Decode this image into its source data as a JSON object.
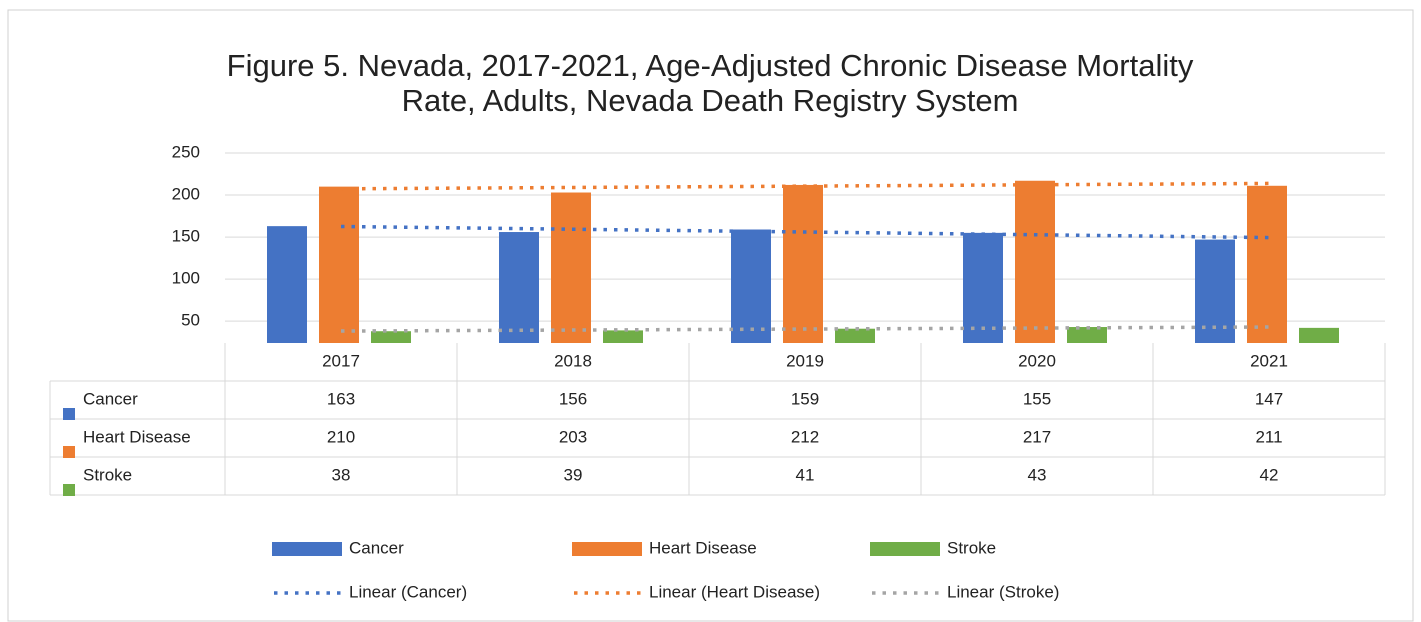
{
  "chart_data": {
    "type": "bar",
    "title": "Figure 5. Nevada, 2017-2021, Age-Adjusted Chronic Disease Mortality",
    "subtitle": "Rate, Adults, Nevada Death Registry System",
    "categories": [
      "2017",
      "2018",
      "2019",
      "2020",
      "2021"
    ],
    "series": [
      {
        "name": "Cancer",
        "color": "#4472c4",
        "values": [
          163,
          156,
          159,
          155,
          147
        ],
        "trendline": {
          "name": "Linear (Cancer)",
          "color": "#4472c4"
        }
      },
      {
        "name": "Heart Disease",
        "color": "#ed7d31",
        "values": [
          210,
          203,
          212,
          217,
          211
        ],
        "trendline": {
          "name": "Linear (Heart Disease)",
          "color": "#ed7d31"
        }
      },
      {
        "name": "Stroke",
        "color": "#70ad47",
        "values": [
          38,
          39,
          41,
          43,
          42
        ],
        "trendline": {
          "name": "Linear (Stroke)",
          "color": "#a5a5a5"
        }
      }
    ],
    "ylim": [
      24,
      250
    ],
    "yticks": [
      50,
      100,
      150,
      200,
      250
    ],
    "grid": true,
    "data_table": true,
    "legend": "bottom"
  }
}
